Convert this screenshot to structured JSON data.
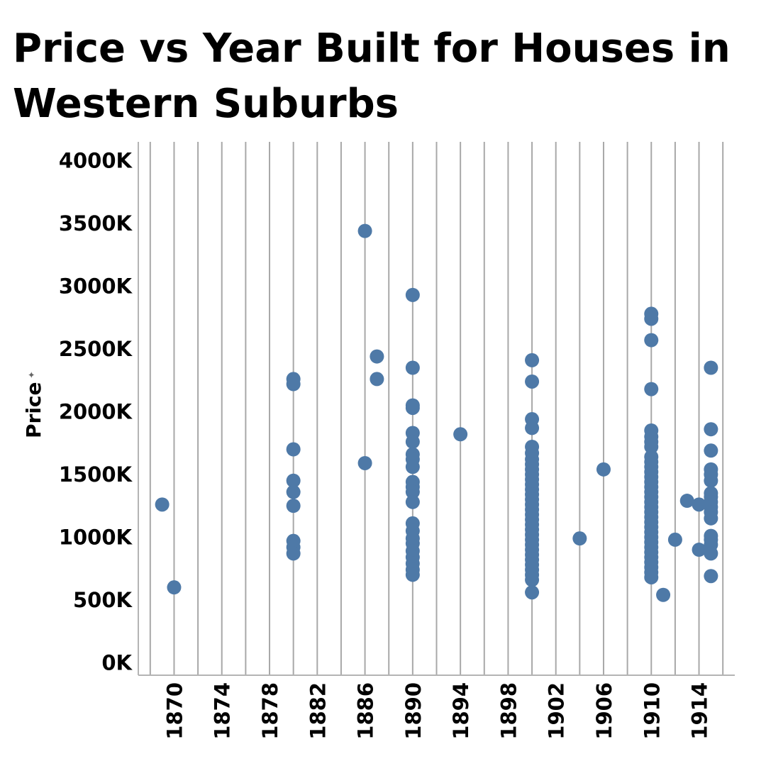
{
  "chart_data": {
    "type": "scatter",
    "title": "Price vs Year Built for Houses in Western Suburbs",
    "xlabel": "",
    "ylabel": "Price",
    "xlim": [
      1867,
      1917
    ],
    "ylim": [
      -100,
      4150
    ],
    "x_ticks": [
      "1870",
      "1874",
      "1878",
      "1882",
      "1886",
      "1890",
      "1894",
      "1898",
      "1902",
      "1906",
      "1910",
      "1914"
    ],
    "y_ticks": [
      "0K",
      "500K",
      "1000K",
      "1500K",
      "2000K",
      "2500K",
      "3000K",
      "3500K",
      "4000K"
    ],
    "grid": {
      "vertical": true,
      "horizontal": false
    },
    "marker_color": "#4e79a7",
    "points": [
      {
        "x": 1869,
        "y": 1260
      },
      {
        "x": 1870,
        "y": 600
      },
      {
        "x": 1880,
        "y": 2260
      },
      {
        "x": 1880,
        "y": 2220
      },
      {
        "x": 1880,
        "y": 1700
      },
      {
        "x": 1880,
        "y": 1450
      },
      {
        "x": 1880,
        "y": 1360
      },
      {
        "x": 1880,
        "y": 1250
      },
      {
        "x": 1880,
        "y": 970
      },
      {
        "x": 1880,
        "y": 920
      },
      {
        "x": 1880,
        "y": 870
      },
      {
        "x": 1886,
        "y": 3440
      },
      {
        "x": 1886,
        "y": 1590
      },
      {
        "x": 1887,
        "y": 2440
      },
      {
        "x": 1887,
        "y": 2260
      },
      {
        "x": 1890,
        "y": 2930
      },
      {
        "x": 1890,
        "y": 2350
      },
      {
        "x": 1890,
        "y": 2050
      },
      {
        "x": 1890,
        "y": 2030
      },
      {
        "x": 1890,
        "y": 1830
      },
      {
        "x": 1890,
        "y": 1760
      },
      {
        "x": 1890,
        "y": 1660
      },
      {
        "x": 1890,
        "y": 1620
      },
      {
        "x": 1890,
        "y": 1560
      },
      {
        "x": 1890,
        "y": 1440
      },
      {
        "x": 1890,
        "y": 1400
      },
      {
        "x": 1890,
        "y": 1360
      },
      {
        "x": 1890,
        "y": 1280
      },
      {
        "x": 1890,
        "y": 1110
      },
      {
        "x": 1890,
        "y": 1050
      },
      {
        "x": 1890,
        "y": 990
      },
      {
        "x": 1890,
        "y": 950
      },
      {
        "x": 1890,
        "y": 890
      },
      {
        "x": 1890,
        "y": 840
      },
      {
        "x": 1890,
        "y": 790
      },
      {
        "x": 1890,
        "y": 740
      },
      {
        "x": 1890,
        "y": 700
      },
      {
        "x": 1894,
        "y": 1820
      },
      {
        "x": 1900,
        "y": 2410
      },
      {
        "x": 1900,
        "y": 2240
      },
      {
        "x": 1900,
        "y": 1940
      },
      {
        "x": 1900,
        "y": 1870
      },
      {
        "x": 1900,
        "y": 1720
      },
      {
        "x": 1900,
        "y": 1670
      },
      {
        "x": 1900,
        "y": 1620
      },
      {
        "x": 1900,
        "y": 1580
      },
      {
        "x": 1900,
        "y": 1540
      },
      {
        "x": 1900,
        "y": 1500
      },
      {
        "x": 1900,
        "y": 1460
      },
      {
        "x": 1900,
        "y": 1420
      },
      {
        "x": 1900,
        "y": 1380
      },
      {
        "x": 1900,
        "y": 1340
      },
      {
        "x": 1900,
        "y": 1300
      },
      {
        "x": 1900,
        "y": 1260
      },
      {
        "x": 1900,
        "y": 1220
      },
      {
        "x": 1900,
        "y": 1180
      },
      {
        "x": 1900,
        "y": 1140
      },
      {
        "x": 1900,
        "y": 1100
      },
      {
        "x": 1900,
        "y": 1060
      },
      {
        "x": 1900,
        "y": 1020
      },
      {
        "x": 1900,
        "y": 980
      },
      {
        "x": 1900,
        "y": 940
      },
      {
        "x": 1900,
        "y": 900
      },
      {
        "x": 1900,
        "y": 860
      },
      {
        "x": 1900,
        "y": 820
      },
      {
        "x": 1900,
        "y": 780
      },
      {
        "x": 1900,
        "y": 740
      },
      {
        "x": 1900,
        "y": 700
      },
      {
        "x": 1900,
        "y": 660
      },
      {
        "x": 1900,
        "y": 560
      },
      {
        "x": 1904,
        "y": 990
      },
      {
        "x": 1906,
        "y": 1540
      },
      {
        "x": 1910,
        "y": 2780
      },
      {
        "x": 1910,
        "y": 2740
      },
      {
        "x": 1910,
        "y": 2570
      },
      {
        "x": 1910,
        "y": 2180
      },
      {
        "x": 1910,
        "y": 1850
      },
      {
        "x": 1910,
        "y": 1800
      },
      {
        "x": 1910,
        "y": 1760
      },
      {
        "x": 1910,
        "y": 1720
      },
      {
        "x": 1910,
        "y": 1640
      },
      {
        "x": 1910,
        "y": 1600
      },
      {
        "x": 1910,
        "y": 1560
      },
      {
        "x": 1910,
        "y": 1520
      },
      {
        "x": 1910,
        "y": 1480
      },
      {
        "x": 1910,
        "y": 1440
      },
      {
        "x": 1910,
        "y": 1400
      },
      {
        "x": 1910,
        "y": 1360
      },
      {
        "x": 1910,
        "y": 1320
      },
      {
        "x": 1910,
        "y": 1280
      },
      {
        "x": 1910,
        "y": 1240
      },
      {
        "x": 1910,
        "y": 1200
      },
      {
        "x": 1910,
        "y": 1160
      },
      {
        "x": 1910,
        "y": 1120
      },
      {
        "x": 1910,
        "y": 1080
      },
      {
        "x": 1910,
        "y": 1040
      },
      {
        "x": 1910,
        "y": 1000
      },
      {
        "x": 1910,
        "y": 960
      },
      {
        "x": 1910,
        "y": 920
      },
      {
        "x": 1910,
        "y": 880
      },
      {
        "x": 1910,
        "y": 840
      },
      {
        "x": 1910,
        "y": 800
      },
      {
        "x": 1910,
        "y": 760
      },
      {
        "x": 1910,
        "y": 720
      },
      {
        "x": 1910,
        "y": 680
      },
      {
        "x": 1911,
        "y": 540
      },
      {
        "x": 1912,
        "y": 980
      },
      {
        "x": 1913,
        "y": 1290
      },
      {
        "x": 1914,
        "y": 1260
      },
      {
        "x": 1914,
        "y": 900
      },
      {
        "x": 1915,
        "y": 2350
      },
      {
        "x": 1915,
        "y": 1860
      },
      {
        "x": 1915,
        "y": 1690
      },
      {
        "x": 1915,
        "y": 1540
      },
      {
        "x": 1915,
        "y": 1500
      },
      {
        "x": 1915,
        "y": 1450
      },
      {
        "x": 1915,
        "y": 1350
      },
      {
        "x": 1915,
        "y": 1320
      },
      {
        "x": 1915,
        "y": 1280
      },
      {
        "x": 1915,
        "y": 1240
      },
      {
        "x": 1915,
        "y": 1200
      },
      {
        "x": 1915,
        "y": 1150
      },
      {
        "x": 1915,
        "y": 1010
      },
      {
        "x": 1915,
        "y": 980
      },
      {
        "x": 1915,
        "y": 940
      },
      {
        "x": 1915,
        "y": 870
      },
      {
        "x": 1915,
        "y": 690
      }
    ]
  }
}
